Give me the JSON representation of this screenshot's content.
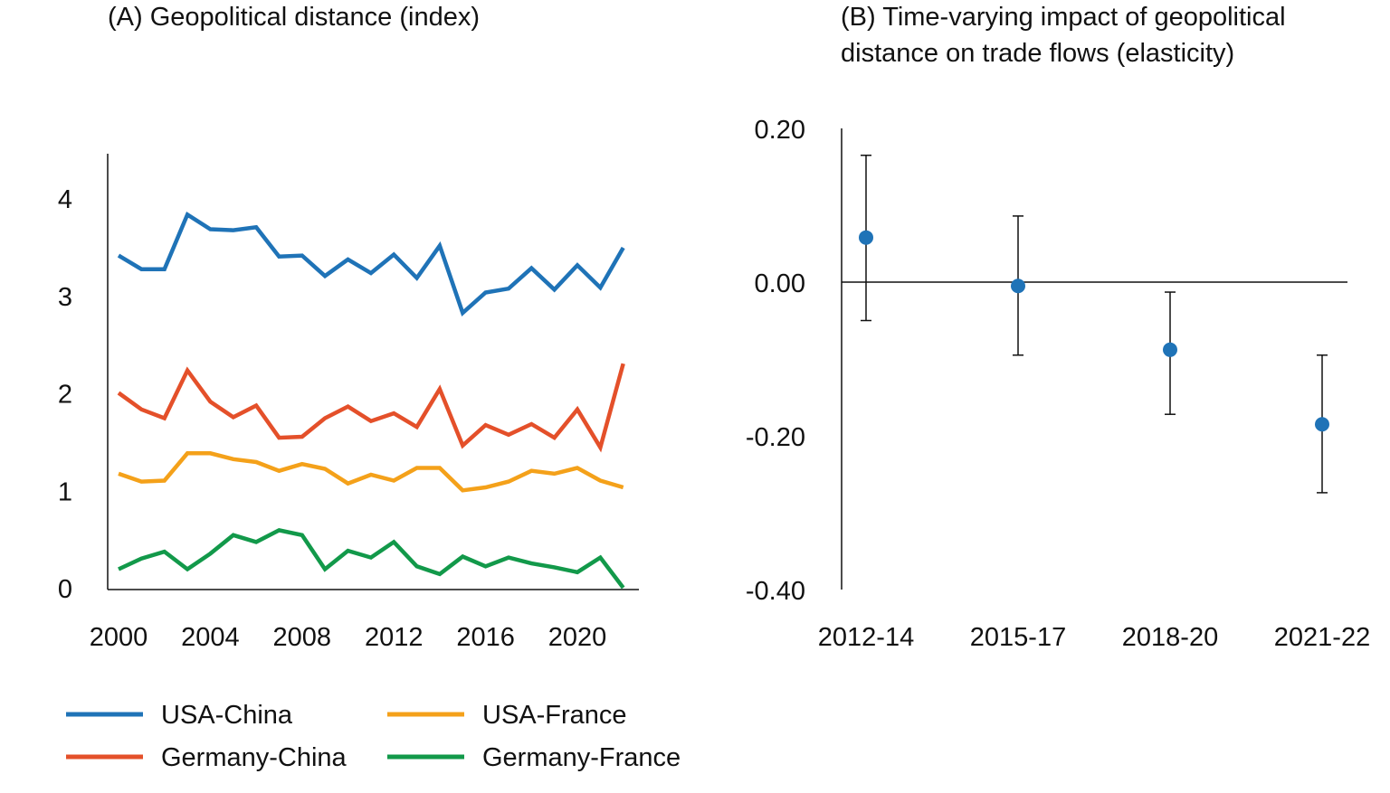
{
  "chart_data": [
    {
      "type": "line",
      "title": "(A) Geopolitical distance (index)",
      "x": [
        2000,
        2001,
        2002,
        2003,
        2004,
        2005,
        2006,
        2007,
        2008,
        2009,
        2010,
        2011,
        2012,
        2013,
        2014,
        2015,
        2016,
        2017,
        2018,
        2019,
        2020,
        2021,
        2022
      ],
      "xticks": [
        2000,
        2004,
        2008,
        2012,
        2016,
        2020
      ],
      "yticks": [
        0,
        1,
        2,
        3,
        4
      ],
      "xlim": [
        2000,
        2022
      ],
      "ylim": [
        0,
        4.45
      ],
      "grid": false,
      "legend_placement": "bottom",
      "series": [
        {
          "name": "USA-China",
          "color": "#1f73b7",
          "values": [
            3.41,
            3.27,
            3.27,
            3.83,
            3.68,
            3.67,
            3.7,
            3.4,
            3.41,
            3.2,
            3.37,
            3.23,
            3.42,
            3.18,
            3.51,
            2.82,
            3.03,
            3.07,
            3.28,
            3.06,
            3.31,
            3.08,
            3.49
          ]
        },
        {
          "name": "Germany-China",
          "color": "#e4502a",
          "values": [
            2.0,
            1.83,
            1.74,
            2.23,
            1.91,
            1.75,
            1.87,
            1.54,
            1.55,
            1.74,
            1.86,
            1.71,
            1.79,
            1.65,
            2.04,
            1.46,
            1.67,
            1.57,
            1.68,
            1.54,
            1.83,
            1.44,
            2.3
          ]
        },
        {
          "name": "USA-France",
          "color": "#f4a11a",
          "values": [
            1.17,
            1.09,
            1.1,
            1.38,
            1.38,
            1.32,
            1.29,
            1.2,
            1.27,
            1.22,
            1.07,
            1.16,
            1.1,
            1.23,
            1.23,
            1.0,
            1.03,
            1.09,
            1.2,
            1.17,
            1.23,
            1.1,
            1.03
          ]
        },
        {
          "name": "Germany-France",
          "color": "#12994a",
          "values": [
            0.19,
            0.3,
            0.37,
            0.19,
            0.35,
            0.54,
            0.47,
            0.59,
            0.54,
            0.19,
            0.38,
            0.31,
            0.47,
            0.22,
            0.14,
            0.32,
            0.22,
            0.31,
            0.25,
            0.21,
            0.16,
            0.31,
            0.0
          ]
        }
      ]
    },
    {
      "type": "scatter",
      "title": "(B) Time-varying impact of geopolitical distance on trade flows (elasticity)",
      "title_lines": [
        "(B) Time-varying impact of geopolitical",
        "distance on trade flows (elasticity)"
      ],
      "categories": [
        "2012-14",
        "2015-17",
        "2018-20",
        "2021-22"
      ],
      "values": [
        0.058,
        -0.005,
        -0.088,
        -0.185
      ],
      "error_upper": [
        0.165,
        0.086,
        -0.013,
        -0.095
      ],
      "error_lower": [
        -0.05,
        -0.095,
        -0.172,
        -0.274
      ],
      "yticks": [
        "0.20",
        "0.00",
        "-0.20",
        "-0.40"
      ],
      "ylim": [
        -0.4,
        0.2
      ],
      "point_color": "#1f73b7",
      "grid": false
    }
  ]
}
